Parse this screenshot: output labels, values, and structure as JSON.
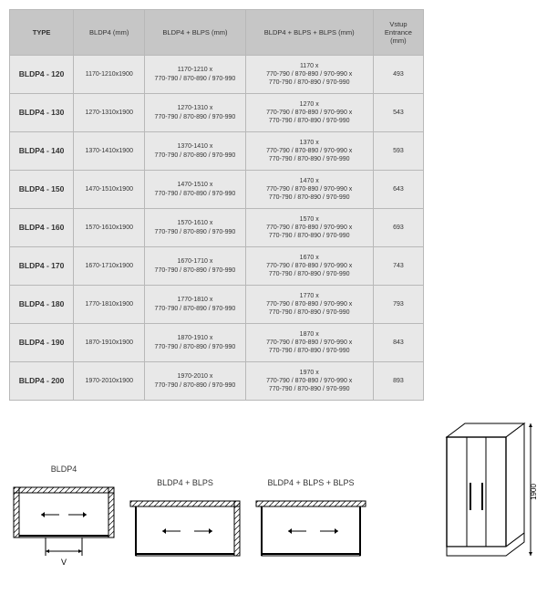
{
  "table": {
    "headers": {
      "type": "TYPE",
      "bldp4": "BLDP4 (mm)",
      "combo1": "BLDP4 + BLPS (mm)",
      "combo2": "BLDP4 + BLPS + BLPS (mm)",
      "entry": "Vstup Entrance (mm)"
    },
    "rows": [
      {
        "model": "BLDP4 - 120",
        "bldp4": "1170-1210x1900",
        "combo1": "1170-1210 x\n770-790 / 870-890 / 970-990",
        "combo2": "1170 x\n770-790 / 870-890 / 970-990 x\n770-790 / 870-890 / 970-990",
        "entry": "493"
      },
      {
        "model": "BLDP4 - 130",
        "bldp4": "1270-1310x1900",
        "combo1": "1270-1310 x\n770-790 / 870-890 / 970-990",
        "combo2": "1270 x\n770-790 / 870-890 / 970-990 x\n770-790 / 870-890 / 970-990",
        "entry": "543"
      },
      {
        "model": "BLDP4 - 140",
        "bldp4": "1370-1410x1900",
        "combo1": "1370-1410 x\n770-790 / 870-890 / 970-990",
        "combo2": "1370 x\n770-790 / 870-890 / 970-990 x\n770-790 / 870-890 / 970-990",
        "entry": "593"
      },
      {
        "model": "BLDP4 - 150",
        "bldp4": "1470-1510x1900",
        "combo1": "1470-1510 x\n770-790 / 870-890 / 970-990",
        "combo2": "1470 x\n770-790 / 870-890 / 970-990 x\n770-790 / 870-890 / 970-990",
        "entry": "643"
      },
      {
        "model": "BLDP4 - 160",
        "bldp4": "1570-1610x1900",
        "combo1": "1570-1610 x\n770-790 / 870-890 / 970-990",
        "combo2": "1570 x\n770-790 / 870-890 / 970-990 x\n770-790 / 870-890 / 970-990",
        "entry": "693"
      },
      {
        "model": "BLDP4 - 170",
        "bldp4": "1670-1710x1900",
        "combo1": "1670-1710 x\n770-790 / 870-890 / 970-990",
        "combo2": "1670 x\n770-790 / 870-890 / 970-990 x\n770-790 / 870-890 / 970-990",
        "entry": "743"
      },
      {
        "model": "BLDP4 - 180",
        "bldp4": "1770-1810x1900",
        "combo1": "1770-1810 x\n770-790 / 870-890 / 970-990",
        "combo2": "1770 x\n770-790 / 870-890 / 970-990 x\n770-790 / 870-890 / 970-990",
        "entry": "793"
      },
      {
        "model": "BLDP4 - 190",
        "bldp4": "1870-1910x1900",
        "combo1": "1870-1910 x\n770-790 / 870-890 / 970-990",
        "combo2": "1870 x\n770-790 / 870-890 / 970-990 x\n770-790 / 870-890 / 970-990",
        "entry": "843"
      },
      {
        "model": "BLDP4 - 200",
        "bldp4": "1970-2010x1900",
        "combo1": "1970-2010 x\n770-790 / 870-890 / 970-990",
        "combo2": "1970 x\n770-790 / 870-890 / 970-990 x\n770-790 / 870-890 / 970-990",
        "entry": "893"
      }
    ]
  },
  "diagrams": {
    "d1_label": "BLDP4",
    "d2_label": "BLDP4 + BLPS",
    "d3_label": "BLDP4 + BLPS + BLPS",
    "v_label": "V",
    "height_label": "1900",
    "style": {
      "stroke": "#000000",
      "fill": "#ffffff",
      "line_width": 1.2,
      "hatch_density": 6
    }
  },
  "colors": {
    "header_bg": "#c6c6c6",
    "cell_bg": "#e8e8e8",
    "border": "#b8b8b8",
    "text": "#333333"
  }
}
